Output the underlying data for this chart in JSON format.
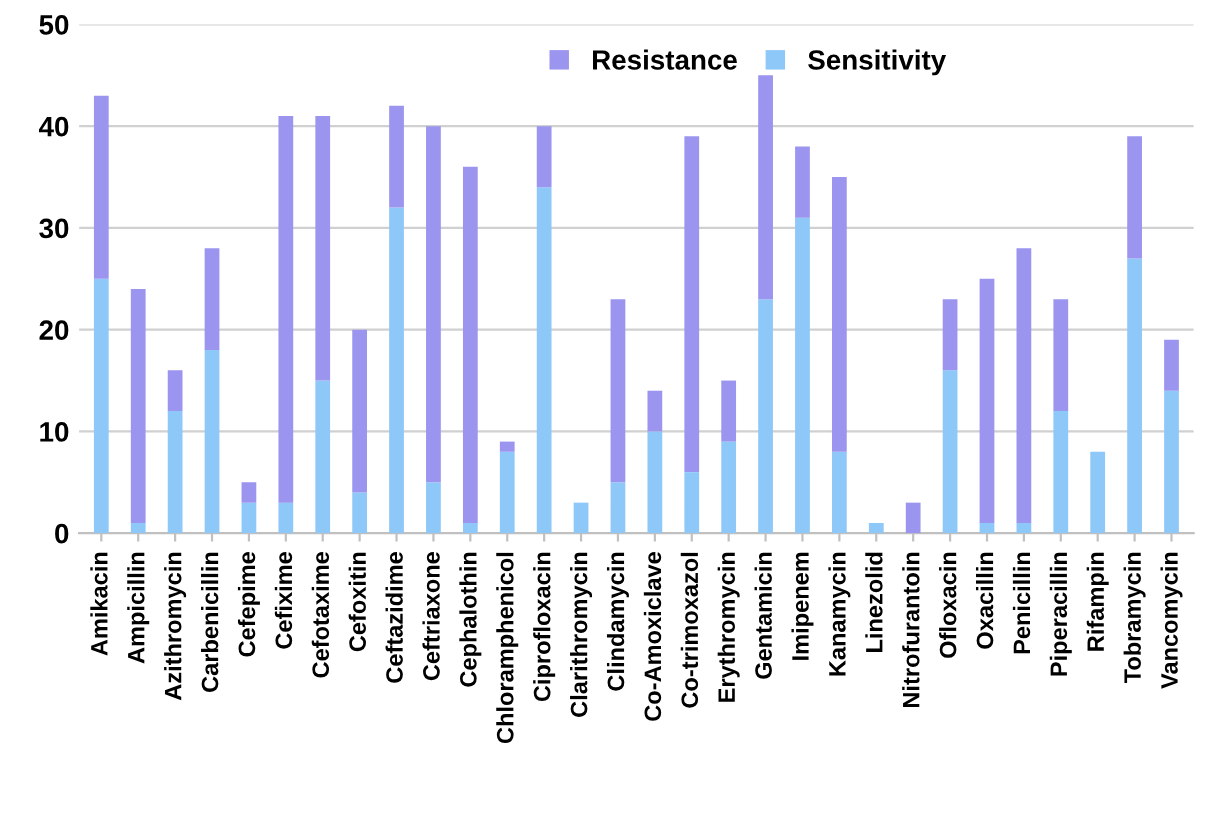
{
  "chart_data": {
    "type": "bar",
    "stacked": true,
    "categories": [
      "Amikacin",
      "Ampicillin",
      "Azithromycin",
      "Carbenicillin",
      "Cefepime",
      "Cefixime",
      "Cefotaxime",
      "Cefoxitin",
      "Ceftazidime",
      "Ceftriaxone",
      "Cephalothin",
      "Chloramphenicol",
      "Ciprofloxacin",
      "Clarithromycin",
      "Clindamycin",
      "Co-Amoxiclave",
      "Co-trimoxazol",
      "Erythromycin",
      "Gentamicin",
      "Imipenem",
      "Kanamycin",
      "Linezolid",
      "Nitrofurantoin",
      "Ofloxacin",
      "Oxacillin",
      "Penicillin",
      "Piperacillin",
      "Rifampin",
      "Tobramycin",
      "Vancomycin"
    ],
    "series": [
      {
        "name": "Sensitivity",
        "color": "#8ec8f8",
        "values": [
          25,
          1,
          12,
          18,
          3,
          3,
          15,
          4,
          32,
          5,
          1,
          8,
          34,
          3,
          5,
          10,
          6,
          9,
          23,
          31,
          8,
          1,
          0,
          16,
          1,
          1,
          12,
          8,
          27,
          14
        ]
      },
      {
        "name": "Resistance",
        "color": "#9b95ef",
        "values": [
          18,
          23,
          4,
          10,
          2,
          38,
          26,
          16,
          10,
          35,
          35,
          1,
          6,
          0,
          18,
          4,
          33,
          6,
          22,
          7,
          27,
          0,
          3,
          7,
          24,
          27,
          11,
          0,
          12,
          5
        ]
      }
    ],
    "ylim": [
      0,
      50
    ],
    "yticks": [
      0,
      10,
      20,
      30,
      40,
      50
    ],
    "grid": "y",
    "legend": "top"
  }
}
